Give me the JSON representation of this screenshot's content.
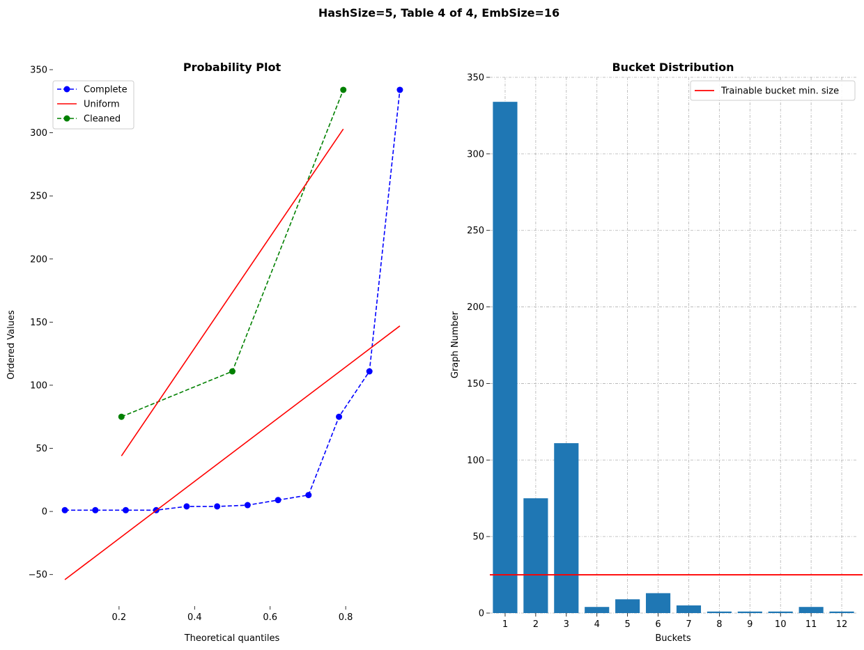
{
  "figure": {
    "suptitle": "HashSize=5, Table 4 of 4, EmbSize=16"
  },
  "colors": {
    "blue": "#0000ff",
    "red": "#ff0000",
    "green": "#008000",
    "bar": "#1f77b4",
    "grid": "#b0b0b0"
  },
  "chart_data": [
    {
      "type": "line",
      "title": "Probability Plot",
      "xlabel": "Theoretical quantiles",
      "ylabel": "Ordered Values",
      "xlim": [
        0.025,
        0.975
      ],
      "ylim": [
        -75,
        350
      ],
      "xticks": [
        "0.2",
        "0.4",
        "0.6",
        "0.8"
      ],
      "yticks": [
        "−50",
        "0",
        "50",
        "100",
        "150",
        "200",
        "250",
        "300",
        "350"
      ],
      "legend_position": "upper-left",
      "series": [
        {
          "name": "Complete",
          "style": "dashed-markers",
          "color": "#0000ff",
          "x": [
            0.0565,
            0.1372,
            0.2177,
            0.2984,
            0.379,
            0.4597,
            0.5403,
            0.621,
            0.7016,
            0.7823,
            0.8628,
            0.9435
          ],
          "y": [
            1,
            1,
            1,
            1,
            4,
            4,
            5,
            9,
            13,
            75,
            111,
            334
          ]
        },
        {
          "name": "Uniform",
          "style": "solid",
          "color": "#ff0000",
          "x": [
            0.0565,
            0.9435
          ],
          "y": [
            -54,
            147
          ]
        },
        {
          "name": "Cleaned",
          "style": "dashed-markers",
          "color": "#008000",
          "x": [
            0.2063,
            0.5,
            0.7937
          ],
          "y": [
            75,
            111,
            334
          ]
        },
        {
          "name": "",
          "style": "solid",
          "color": "#ff0000",
          "x": [
            0.2063,
            0.7937
          ],
          "y": [
            44,
            303
          ]
        }
      ]
    },
    {
      "type": "bar",
      "title": "Bucket Distribution",
      "xlabel": "Buckets",
      "ylabel": "Graph Number",
      "ylim": [
        0,
        350
      ],
      "yticks": [
        "0",
        "50",
        "100",
        "150",
        "200",
        "250",
        "300",
        "350"
      ],
      "grid": true,
      "legend_position": "upper-right",
      "categories": [
        "1",
        "2",
        "3",
        "4",
        "5",
        "6",
        "7",
        "8",
        "9",
        "10",
        "11",
        "12"
      ],
      "values": [
        334,
        75,
        111,
        4,
        9,
        13,
        5,
        1,
        1,
        1,
        4,
        1
      ],
      "hline": {
        "name": "Trainable bucket min. size",
        "value": 25,
        "color": "#ff0000"
      }
    }
  ]
}
